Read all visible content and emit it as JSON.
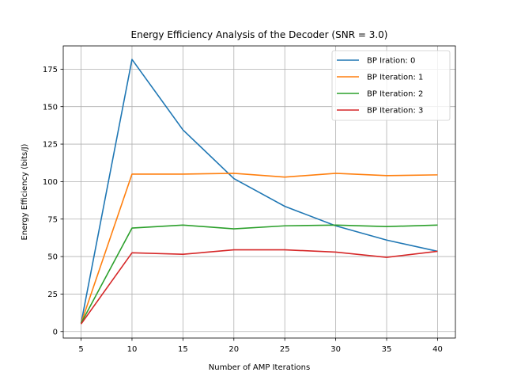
{
  "chart_data": {
    "type": "line",
    "title": "Energy Efficiency Analysis of the Decoder (SNR = 3.0)",
    "xlabel": "Number of AMP Iterations",
    "ylabel": "Energy Efficiency (bits/J)",
    "x": [
      5,
      10,
      15,
      20,
      25,
      30,
      35,
      40
    ],
    "xlim": [
      3.25,
      41.75
    ],
    "ylim": [
      -4.35,
      190.5
    ],
    "xticks": [
      5,
      10,
      15,
      20,
      25,
      30,
      35,
      40
    ],
    "yticks": [
      0,
      25,
      50,
      75,
      100,
      125,
      150,
      175
    ],
    "grid": true,
    "legend_position": "top-right",
    "series": [
      {
        "name": "BP Iration: 0",
        "color": "#1f77b4",
        "values": [
          5.5,
          181.5,
          134.5,
          102.0,
          83.5,
          70.5,
          61.0,
          53.5
        ]
      },
      {
        "name": "BP Iteration: 1",
        "color": "#ff7f0e",
        "values": [
          5.5,
          105.0,
          105.0,
          105.5,
          103.0,
          105.5,
          104.0,
          104.5
        ]
      },
      {
        "name": "BP Iteration: 2",
        "color": "#2ca02c",
        "values": [
          5.5,
          69.0,
          71.0,
          68.5,
          70.5,
          71.0,
          70.0,
          71.0
        ]
      },
      {
        "name": "BP Iteration: 3",
        "color": "#d62728",
        "values": [
          5.0,
          52.5,
          51.5,
          54.5,
          54.5,
          53.0,
          49.5,
          53.5
        ]
      }
    ]
  }
}
